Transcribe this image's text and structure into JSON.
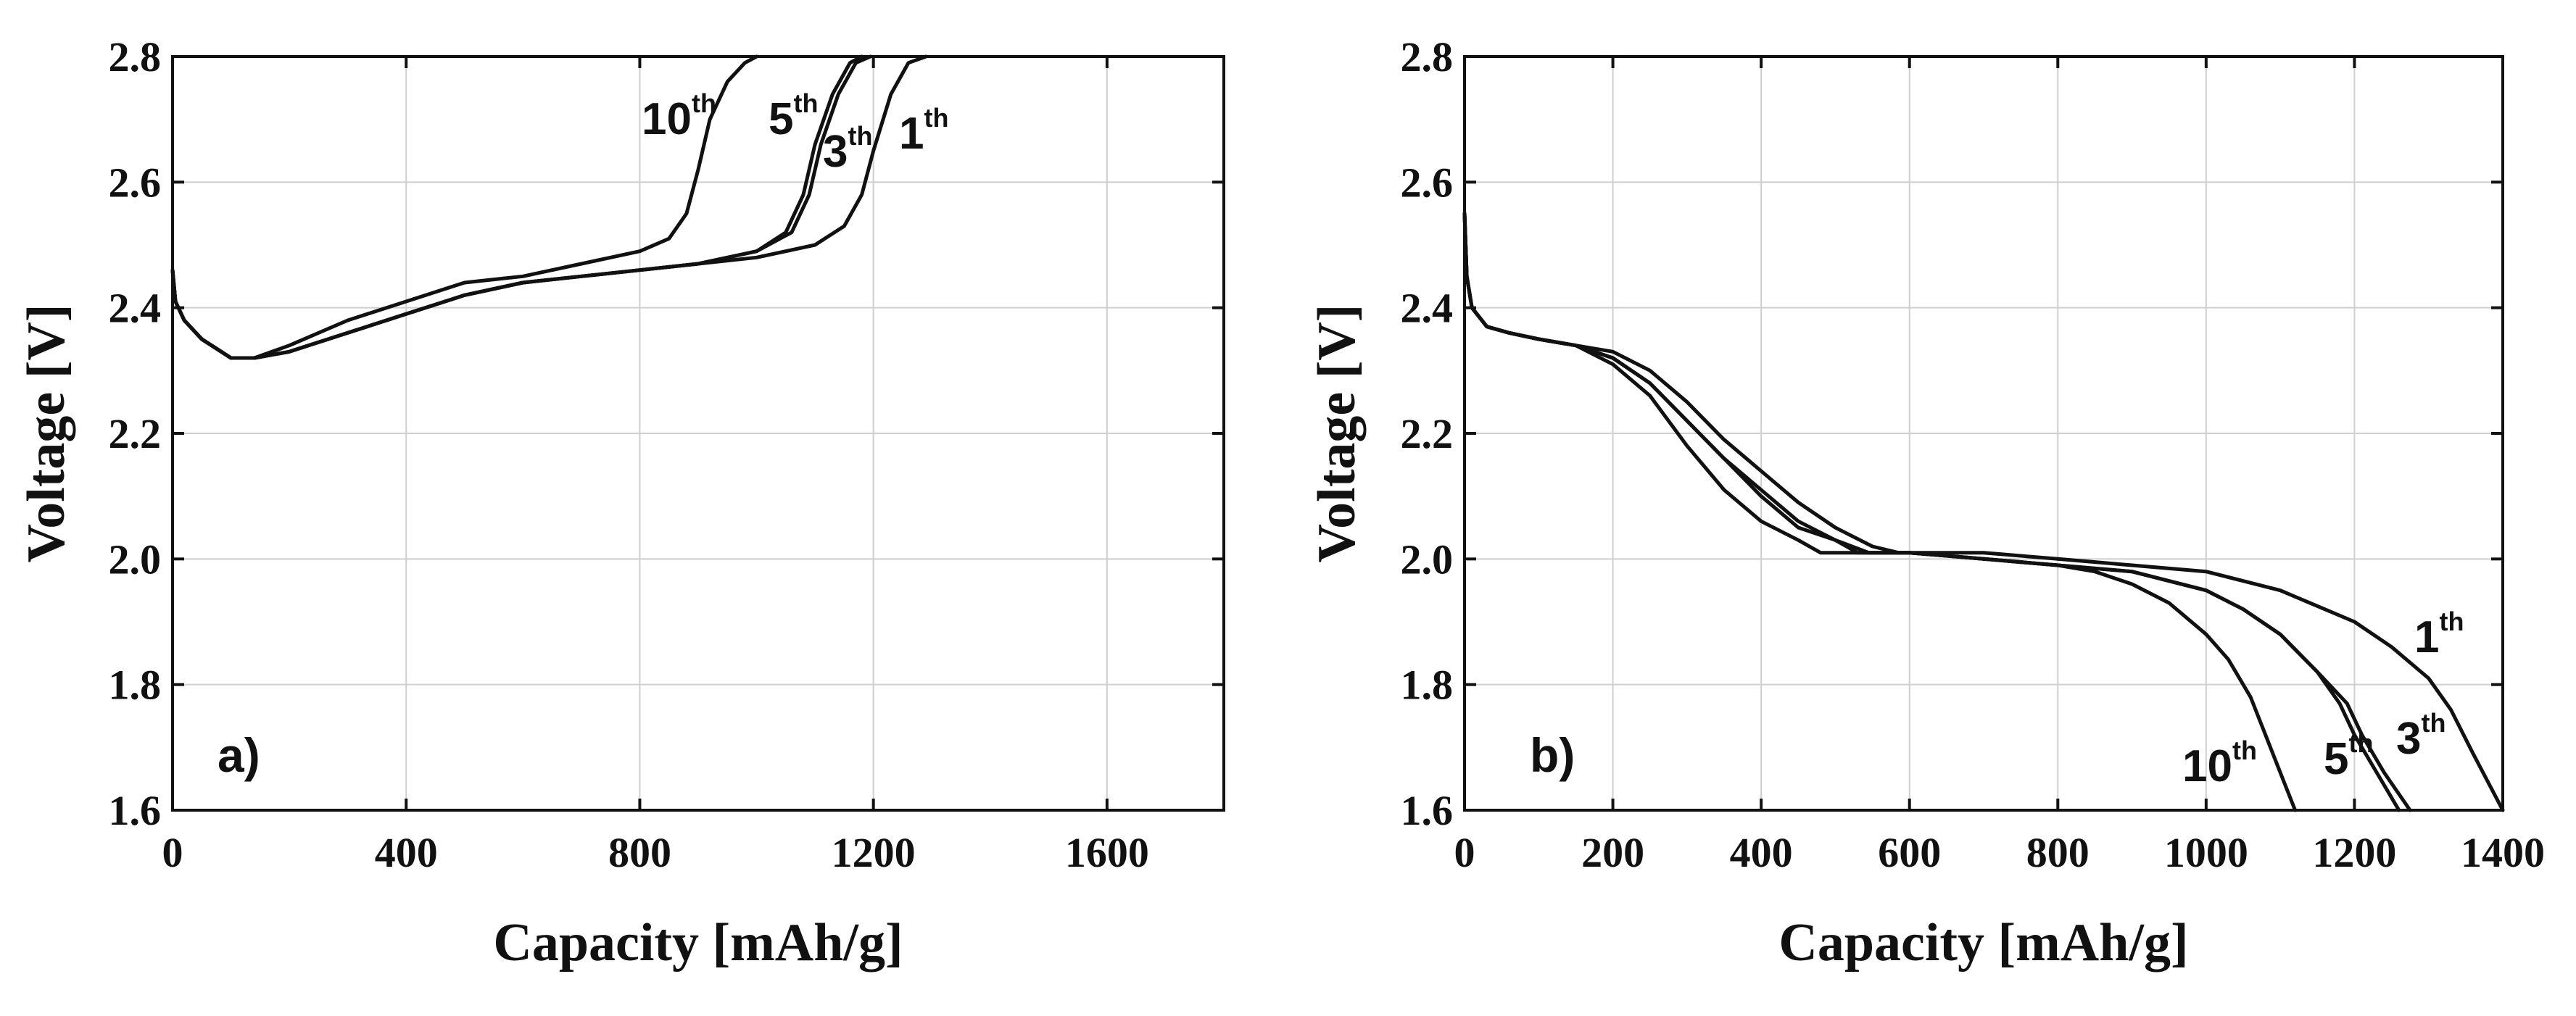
{
  "chart_data": [
    {
      "type": "line",
      "panel_label": "a)",
      "title": "",
      "xlabel": "Capacity [mAh/g]",
      "ylabel": "Voltage [V]",
      "xlim": [
        0,
        1800
      ],
      "ylim": [
        1.6,
        2.8
      ],
      "xticks": [
        "0",
        "400",
        "800",
        "1200",
        "1600"
      ],
      "yticks": [
        "1.6",
        "1.8",
        "2.0",
        "2.2",
        "2.4",
        "2.6",
        "2.8"
      ],
      "grid": true,
      "series": [
        {
          "name": "10th",
          "number": "10",
          "suffix": "th",
          "x": [
            0,
            5,
            20,
            50,
            100,
            140,
            200,
            300,
            400,
            500,
            600,
            700,
            800,
            850,
            880,
            900,
            920,
            950,
            980,
            1000
          ],
          "y": [
            2.46,
            2.41,
            2.38,
            2.35,
            2.32,
            2.32,
            2.34,
            2.38,
            2.41,
            2.44,
            2.45,
            2.47,
            2.49,
            2.51,
            2.55,
            2.62,
            2.7,
            2.76,
            2.79,
            2.8
          ]
        },
        {
          "name": "5th",
          "number": "5",
          "suffix": "th",
          "x": [
            0,
            5,
            20,
            50,
            100,
            140,
            200,
            300,
            400,
            500,
            600,
            700,
            800,
            900,
            1000,
            1050,
            1080,
            1100,
            1130,
            1160,
            1180
          ],
          "y": [
            2.46,
            2.41,
            2.38,
            2.35,
            2.32,
            2.32,
            2.33,
            2.36,
            2.39,
            2.42,
            2.44,
            2.45,
            2.46,
            2.47,
            2.49,
            2.52,
            2.58,
            2.66,
            2.74,
            2.79,
            2.8
          ]
        },
        {
          "name": "3th",
          "number": "3",
          "suffix": "th",
          "x": [
            0,
            5,
            20,
            50,
            100,
            140,
            200,
            300,
            400,
            500,
            600,
            700,
            800,
            900,
            1000,
            1060,
            1090,
            1110,
            1140,
            1170,
            1195
          ],
          "y": [
            2.46,
            2.41,
            2.38,
            2.35,
            2.32,
            2.32,
            2.33,
            2.36,
            2.39,
            2.42,
            2.44,
            2.45,
            2.46,
            2.47,
            2.49,
            2.52,
            2.58,
            2.66,
            2.74,
            2.79,
            2.8
          ]
        },
        {
          "name": "1th",
          "number": "1",
          "suffix": "th",
          "x": [
            0,
            5,
            20,
            50,
            100,
            140,
            200,
            300,
            400,
            500,
            600,
            700,
            800,
            900,
            1000,
            1100,
            1150,
            1180,
            1200,
            1230,
            1260,
            1290
          ],
          "y": [
            2.46,
            2.41,
            2.38,
            2.35,
            2.32,
            2.32,
            2.33,
            2.36,
            2.39,
            2.42,
            2.44,
            2.45,
            2.46,
            2.47,
            2.48,
            2.5,
            2.53,
            2.58,
            2.65,
            2.74,
            2.79,
            2.8
          ]
        }
      ]
    },
    {
      "type": "line",
      "panel_label": "b)",
      "title": "",
      "xlabel": "Capacity [mAh/g]",
      "ylabel": "Voltage [V]",
      "xlim": [
        0,
        1400
      ],
      "ylim": [
        1.6,
        2.8
      ],
      "xticks": [
        "0",
        "200",
        "400",
        "600",
        "800",
        "1000",
        "1200",
        "1400"
      ],
      "yticks": [
        "1.6",
        "1.8",
        "2.0",
        "2.2",
        "2.4",
        "2.6",
        "2.8"
      ],
      "grid": true,
      "series": [
        {
          "name": "10th",
          "number": "10",
          "suffix": "th",
          "x": [
            0,
            3,
            10,
            30,
            60,
            100,
            150,
            200,
            250,
            300,
            350,
            400,
            450,
            480,
            500,
            600,
            700,
            800,
            850,
            900,
            950,
            1000,
            1030,
            1060,
            1080,
            1100,
            1120
          ],
          "y": [
            2.55,
            2.45,
            2.4,
            2.37,
            2.36,
            2.35,
            2.34,
            2.31,
            2.26,
            2.18,
            2.11,
            2.06,
            2.03,
            2.01,
            2.01,
            2.01,
            2.0,
            1.99,
            1.98,
            1.96,
            1.93,
            1.88,
            1.84,
            1.78,
            1.72,
            1.66,
            1.6
          ]
        },
        {
          "name": "5th",
          "number": "5",
          "suffix": "th",
          "x": [
            0,
            3,
            10,
            30,
            60,
            100,
            150,
            200,
            250,
            300,
            350,
            400,
            450,
            500,
            530,
            600,
            700,
            800,
            900,
            1000,
            1050,
            1100,
            1150,
            1180,
            1200,
            1230,
            1260
          ],
          "y": [
            2.55,
            2.45,
            2.4,
            2.37,
            2.36,
            2.35,
            2.34,
            2.32,
            2.28,
            2.22,
            2.16,
            2.1,
            2.05,
            2.03,
            2.01,
            2.01,
            2.0,
            1.99,
            1.98,
            1.95,
            1.92,
            1.88,
            1.82,
            1.77,
            1.72,
            1.66,
            1.6
          ]
        },
        {
          "name": "3th",
          "number": "3",
          "suffix": "th",
          "x": [
            0,
            3,
            10,
            30,
            60,
            100,
            150,
            200,
            250,
            300,
            350,
            400,
            450,
            500,
            545,
            600,
            700,
            800,
            900,
            1000,
            1050,
            1100,
            1150,
            1190,
            1210,
            1240,
            1275
          ],
          "y": [
            2.55,
            2.45,
            2.4,
            2.37,
            2.36,
            2.35,
            2.34,
            2.32,
            2.28,
            2.22,
            2.16,
            2.11,
            2.06,
            2.03,
            2.01,
            2.01,
            2.0,
            1.99,
            1.98,
            1.95,
            1.92,
            1.88,
            1.82,
            1.77,
            1.72,
            1.66,
            1.6
          ]
        },
        {
          "name": "1th",
          "number": "1",
          "suffix": "th",
          "x": [
            0,
            3,
            10,
            30,
            60,
            100,
            150,
            200,
            250,
            300,
            350,
            400,
            450,
            500,
            550,
            585,
            650,
            700,
            800,
            900,
            1000,
            1100,
            1200,
            1250,
            1300,
            1330,
            1360,
            1400
          ],
          "y": [
            2.55,
            2.45,
            2.4,
            2.37,
            2.36,
            2.35,
            2.34,
            2.33,
            2.3,
            2.25,
            2.19,
            2.14,
            2.09,
            2.05,
            2.02,
            2.01,
            2.01,
            2.01,
            2.0,
            1.99,
            1.98,
            1.95,
            1.9,
            1.86,
            1.81,
            1.76,
            1.69,
            1.6
          ]
        }
      ]
    }
  ]
}
